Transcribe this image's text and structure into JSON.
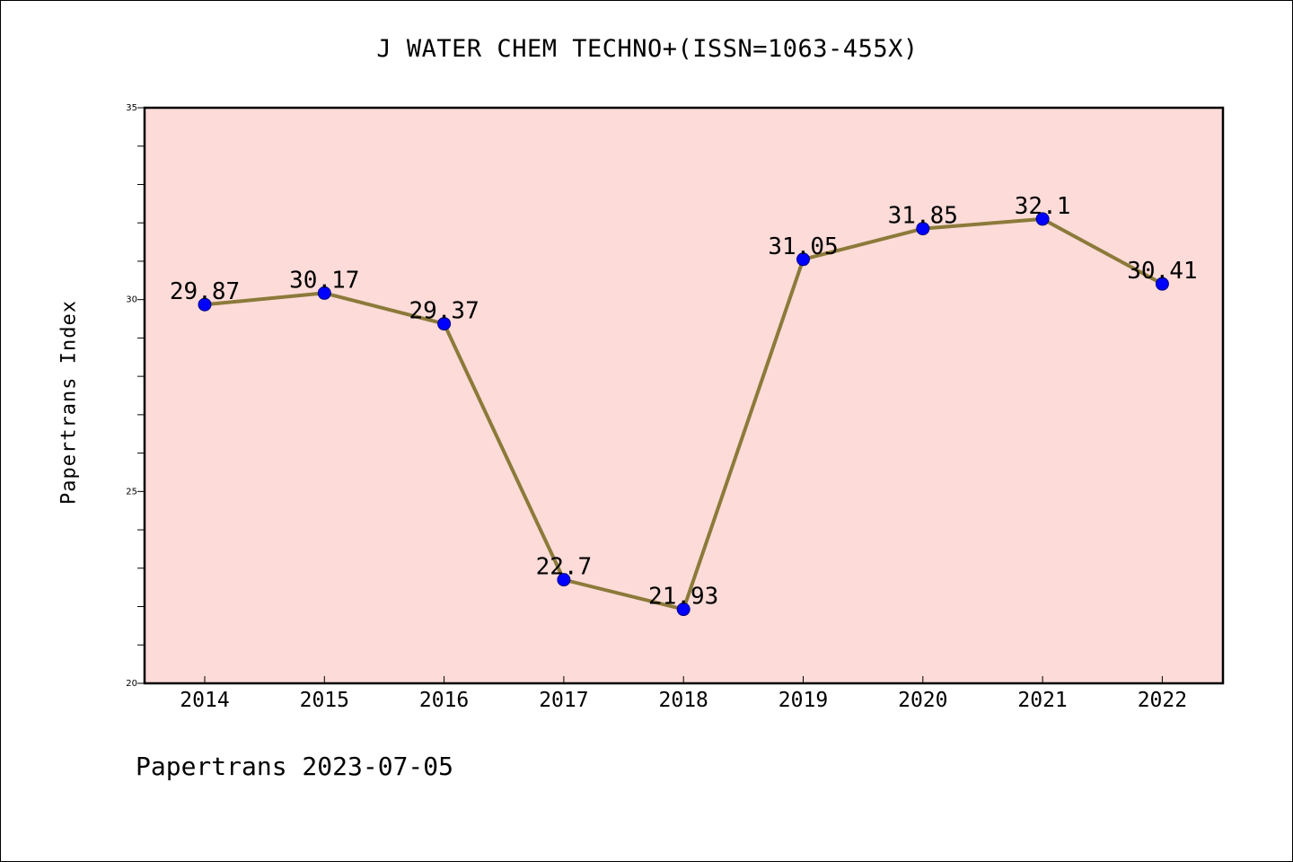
{
  "chart_data": {
    "type": "line",
    "title": "J WATER CHEM TECHNO+(ISSN=1063-455X)",
    "xlabel": "",
    "ylabel": "Papertrans Index",
    "categories": [
      "2014",
      "2015",
      "2016",
      "2017",
      "2018",
      "2019",
      "2020",
      "2021",
      "2022"
    ],
    "values": [
      29.87,
      30.17,
      29.37,
      22.7,
      21.93,
      31.05,
      31.85,
      32.1,
      30.41
    ],
    "data_labels": [
      "29.87",
      "30.17",
      "29.37",
      "22.7",
      "21.93",
      "31.05",
      "31.85",
      "32.1",
      "30.41"
    ],
    "ylim": [
      20,
      35
    ],
    "yticks": [
      "20",
      "25",
      "30",
      "35"
    ],
    "grid": false,
    "legend": "none",
    "colors": {
      "plot_background": "#fddbd8",
      "line": "#8b7a3a",
      "marker": "#0000ff",
      "marker_edge": "#000080"
    }
  },
  "footer": "Papertrans 2023-07-05"
}
